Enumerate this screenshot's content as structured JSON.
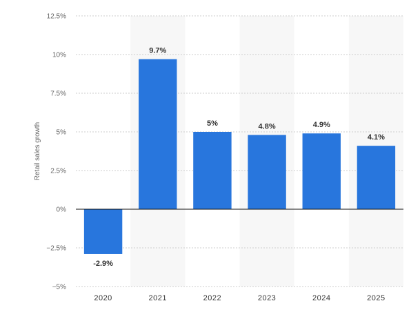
{
  "chart_data": {
    "type": "bar",
    "categories": [
      "2020",
      "2021",
      "2022",
      "2023",
      "2024",
      "2025"
    ],
    "values": [
      -2.9,
      9.7,
      5,
      4.8,
      4.9,
      4.1
    ],
    "value_labels": [
      "-2.9%",
      "9.7%",
      "5%",
      "4.8%",
      "4.9%",
      "4.1%"
    ],
    "title": "",
    "xlabel": "",
    "ylabel": "Retail sales growth",
    "ylim": [
      -5,
      12.5
    ],
    "yticks": [
      12.5,
      10,
      7.5,
      5,
      2.5,
      0,
      -2.5,
      -5
    ],
    "ytick_labels": [
      "12.5%",
      "10%",
      "7.5%",
      "5%",
      "2.5%",
      "0%",
      "−2.5%",
      "−5%"
    ],
    "grid": true,
    "legend": "none",
    "bar_color": "#2876dd",
    "band_color": "#f7f7f7",
    "grid_color": "#cccccc",
    "zero_line_color": "#111111"
  }
}
